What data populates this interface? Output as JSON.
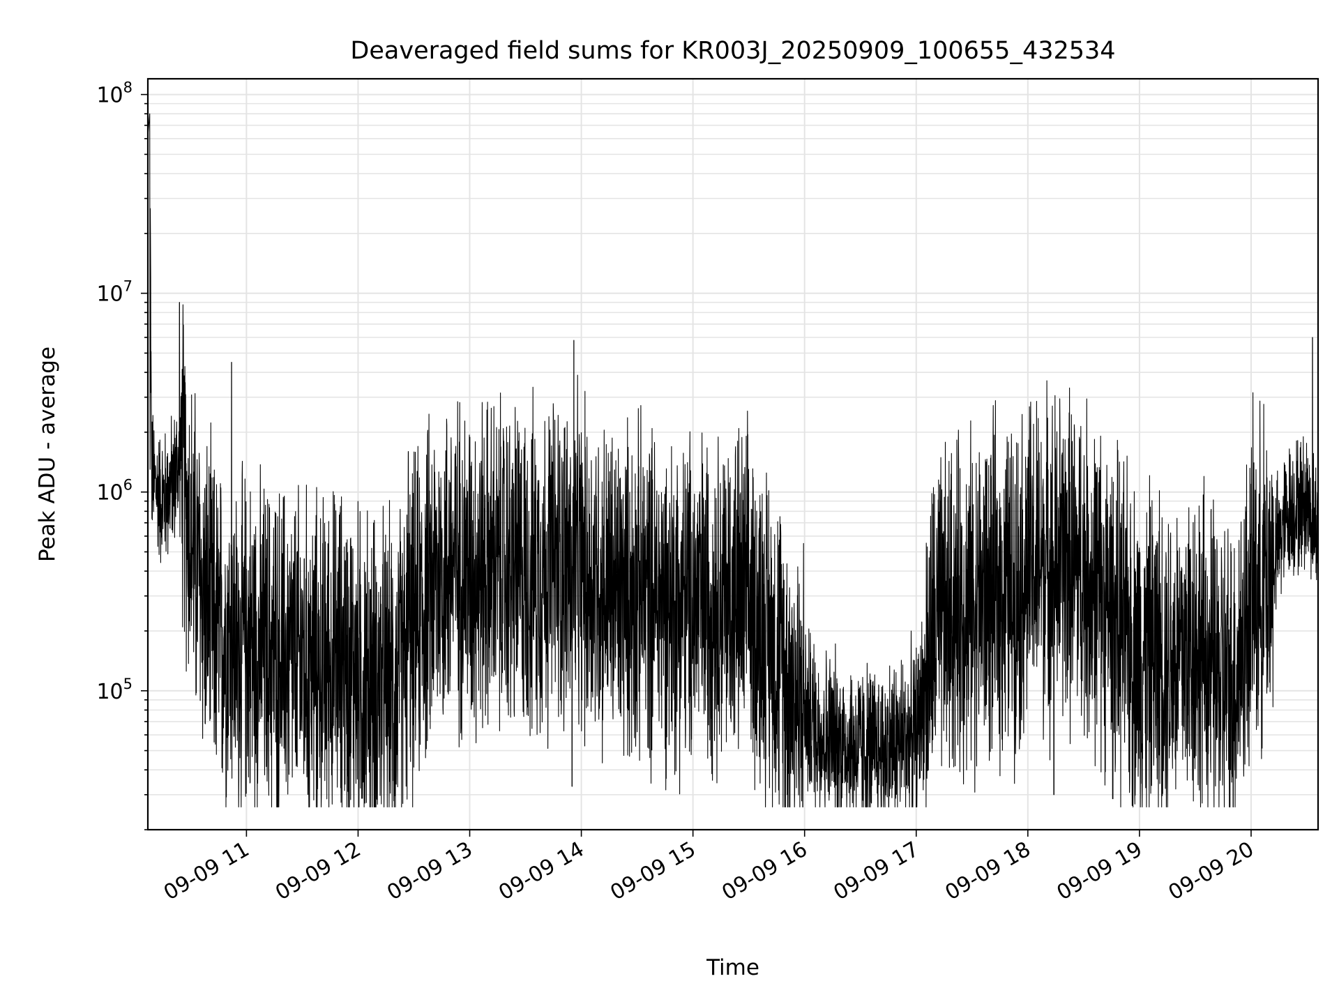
{
  "chart_data": {
    "type": "line",
    "title": "Deaveraged field sums for KR003J_20250909_100655_432534",
    "xlabel": "Time",
    "ylabel": "Peak ADU - average",
    "yscale": "log",
    "ylim": [
      20000,
      120000000
    ],
    "xlim": [
      "2025-09-09 10:07",
      "2025-09-09 20:36"
    ],
    "grid": true,
    "x_ticks": [
      "09-09 11",
      "09-09 12",
      "09-09 13",
      "09-09 14",
      "09-09 15",
      "09-09 16",
      "09-09 17",
      "09-09 18",
      "09-09 19",
      "09-09 20"
    ],
    "y_ticks": [
      {
        "base": "10",
        "exp": "5"
      },
      {
        "base": "10",
        "exp": "6"
      },
      {
        "base": "10",
        "exp": "7"
      },
      {
        "base": "10",
        "exp": "8"
      }
    ],
    "series": [
      {
        "color": "#000000",
        "points": [
          [
            "2025-09-09 10:07",
            6200000
          ],
          [
            "2025-09-09 10:08",
            80000000
          ],
          [
            "2025-09-09 10:09",
            1200000
          ],
          [
            "2025-09-09 10:15",
            900000
          ],
          [
            "2025-09-09 10:20",
            1100000
          ],
          [
            "2025-09-09 10:25",
            1500000
          ],
          [
            "2025-09-09 10:30",
            600000
          ],
          [
            "2025-09-09 10:35",
            350000
          ],
          [
            "2025-09-09 10:40",
            250000
          ],
          [
            "2025-09-09 10:45",
            180000
          ],
          [
            "2025-09-09 10:50",
            200000
          ],
          [
            "2025-09-09 10:55",
            150000
          ],
          [
            "2025-09-09 11:00",
            180000
          ],
          [
            "2025-09-09 11:10",
            160000
          ],
          [
            "2025-09-09 11:20",
            150000
          ],
          [
            "2025-09-09 11:30",
            140000
          ],
          [
            "2025-09-09 11:40",
            130000
          ],
          [
            "2025-09-09 11:50",
            150000
          ],
          [
            "2025-09-09 12:00",
            120000
          ],
          [
            "2025-09-09 12:10",
            110000
          ],
          [
            "2025-09-09 12:20",
            100000
          ],
          [
            "2025-09-09 12:30",
            200000
          ],
          [
            "2025-09-09 12:40",
            350000
          ],
          [
            "2025-09-09 12:50",
            450000
          ],
          [
            "2025-09-09 13:00",
            400000
          ],
          [
            "2025-09-09 13:10",
            420000
          ],
          [
            "2025-09-09 13:20",
            400000
          ],
          [
            "2025-09-09 13:30",
            380000
          ],
          [
            "2025-09-09 13:40",
            420000
          ],
          [
            "2025-09-09 13:50",
            450000
          ],
          [
            "2025-09-09 14:00",
            400000
          ],
          [
            "2025-09-09 14:10",
            350000
          ],
          [
            "2025-09-09 14:20",
            300000
          ],
          [
            "2025-09-09 14:30",
            320000
          ],
          [
            "2025-09-09 14:40",
            300000
          ],
          [
            "2025-09-09 14:50",
            280000
          ],
          [
            "2025-09-09 15:00",
            280000
          ],
          [
            "2025-09-09 15:10",
            300000
          ],
          [
            "2025-09-09 15:20",
            300000
          ],
          [
            "2025-09-09 15:30",
            280000
          ],
          [
            "2025-09-09 15:40",
            200000
          ],
          [
            "2025-09-09 15:50",
            120000
          ],
          [
            "2025-09-09 16:00",
            80000
          ],
          [
            "2025-09-09 16:10",
            60000
          ],
          [
            "2025-09-09 16:20",
            55000
          ],
          [
            "2025-09-09 16:30",
            50000
          ],
          [
            "2025-09-09 16:40",
            50000
          ],
          [
            "2025-09-09 16:50",
            55000
          ],
          [
            "2025-09-09 17:00",
            60000
          ],
          [
            "2025-09-09 17:10",
            200000
          ],
          [
            "2025-09-09 17:20",
            250000
          ],
          [
            "2025-09-09 17:30",
            280000
          ],
          [
            "2025-09-09 17:40",
            300000
          ],
          [
            "2025-09-09 17:50",
            320000
          ],
          [
            "2025-09-09 18:00",
            400000
          ],
          [
            "2025-09-09 18:10",
            450000
          ],
          [
            "2025-09-09 18:20",
            450000
          ],
          [
            "2025-09-09 18:30",
            400000
          ],
          [
            "2025-09-09 18:40",
            300000
          ],
          [
            "2025-09-09 18:50",
            200000
          ],
          [
            "2025-09-09 19:00",
            150000
          ],
          [
            "2025-09-09 19:10",
            150000
          ],
          [
            "2025-09-09 19:20",
            150000
          ],
          [
            "2025-09-09 19:30",
            180000
          ],
          [
            "2025-09-09 19:40",
            120000
          ],
          [
            "2025-09-09 19:50",
            100000
          ],
          [
            "2025-09-09 20:00",
            300000
          ],
          [
            "2025-09-09 20:10",
            400000
          ],
          [
            "2025-09-09 20:20",
            800000
          ],
          [
            "2025-09-09 20:30",
            900000
          ],
          [
            "2025-09-09 20:36",
            600000
          ]
        ],
        "spikes": [
          [
            "2025-09-09 10:24",
            9000000
          ],
          [
            "2025-09-09 10:52",
            4500000
          ],
          [
            "2025-09-09 13:56",
            5800000
          ],
          [
            "2025-09-09 20:33",
            6000000
          ],
          [
            "2025-09-09 12:27",
            1600000
          ],
          [
            "2025-09-09 13:25",
            1650000
          ],
          [
            "2025-09-09 18:14",
            30000
          ],
          [
            "2025-09-09 13:55",
            33000
          ],
          [
            "2025-09-09 12:17",
            35000
          ]
        ]
      }
    ]
  }
}
